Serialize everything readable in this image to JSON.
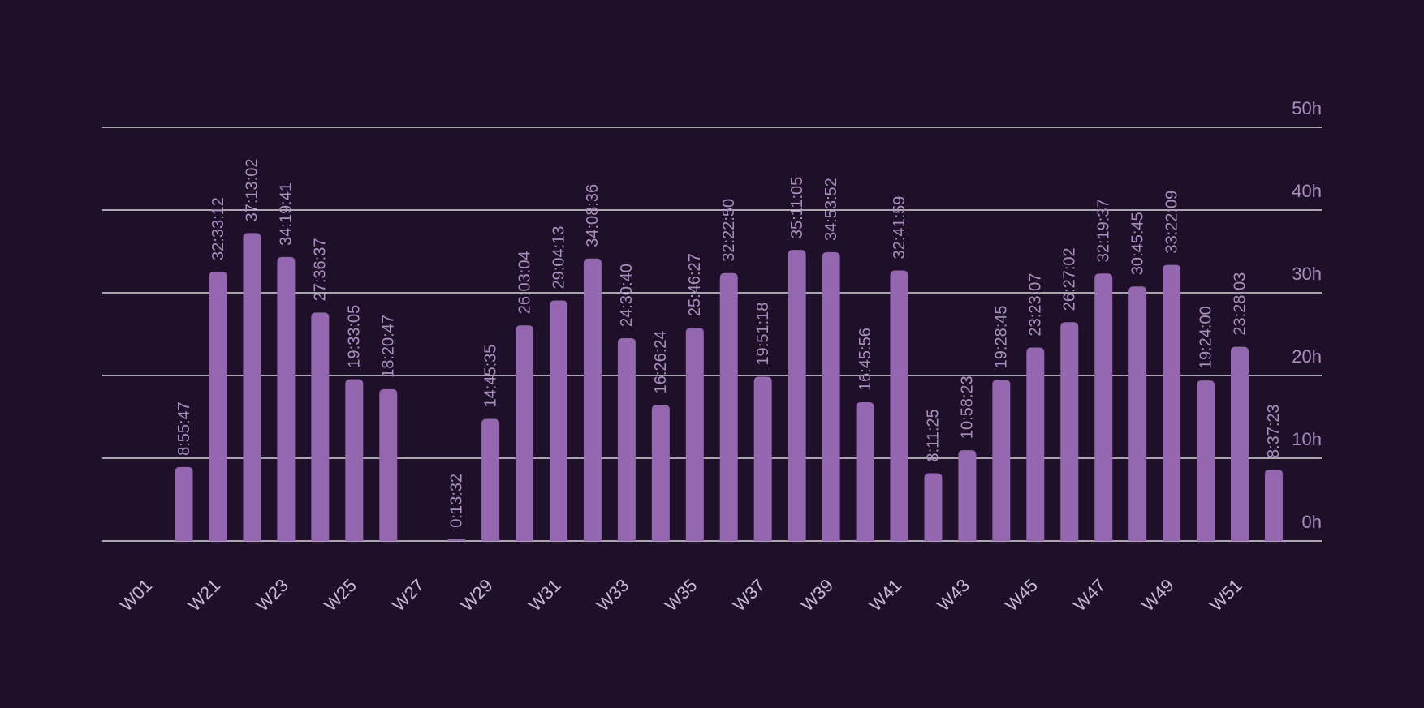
{
  "chart_data": {
    "type": "bar",
    "categories": [
      "W01",
      null,
      "W21",
      null,
      "W23",
      null,
      "W25",
      null,
      "W27",
      null,
      "W29",
      null,
      "W31",
      null,
      "W33",
      null,
      "W35",
      null,
      "W37",
      null,
      "W39",
      null,
      "W41",
      null,
      "W43",
      null,
      "W45",
      null,
      "W47",
      null,
      "W49",
      null,
      "W51",
      null
    ],
    "values": [
      null,
      8.9297,
      32.5533,
      37.2172,
      34.3281,
      27.6103,
      19.5514,
      18.3464,
      null,
      0.2256,
      14.7597,
      26.0511,
      29.0703,
      34.1433,
      24.5111,
      16.44,
      25.7742,
      32.3806,
      19.855,
      35.1847,
      34.8978,
      16.7656,
      32.6997,
      8.1903,
      10.9731,
      19.4792,
      23.3853,
      26.4506,
      32.3269,
      30.7625,
      33.3692,
      19.4,
      23.4675,
      8.6231
    ],
    "value_labels": [
      null,
      "8:55:47",
      "32:33:12",
      "37:13:02",
      "34:19:41",
      "27:36:37",
      "19:33:05",
      "18:20:47",
      null,
      "0:13:32",
      "14:45:35",
      "26:03:04",
      "29:04:13",
      "34:08:36",
      "24:30:40",
      "16:26:24",
      "25:46:27",
      "32:22:50",
      "19:51:18",
      "35:11:05",
      "34:53:52",
      "16:45:56",
      "32:41:59",
      "8:11:25",
      "10:58:23",
      "19:28:45",
      "23:23:07",
      "26:27:02",
      "32:19:37",
      "30:45:45",
      "33:22:09",
      "19:24:00",
      "23:28:03",
      "8:37:23"
    ],
    "color": "#9467b0",
    "ylim": [
      0,
      50
    ],
    "yticks": [
      {
        "value": 0,
        "label": "0h"
      },
      {
        "value": 10,
        "label": "10h"
      },
      {
        "value": 20,
        "label": "20h"
      },
      {
        "value": 30,
        "label": "30h"
      },
      {
        "value": 40,
        "label": "40h"
      },
      {
        "value": 50,
        "label": "50h"
      }
    ],
    "grid": true
  }
}
